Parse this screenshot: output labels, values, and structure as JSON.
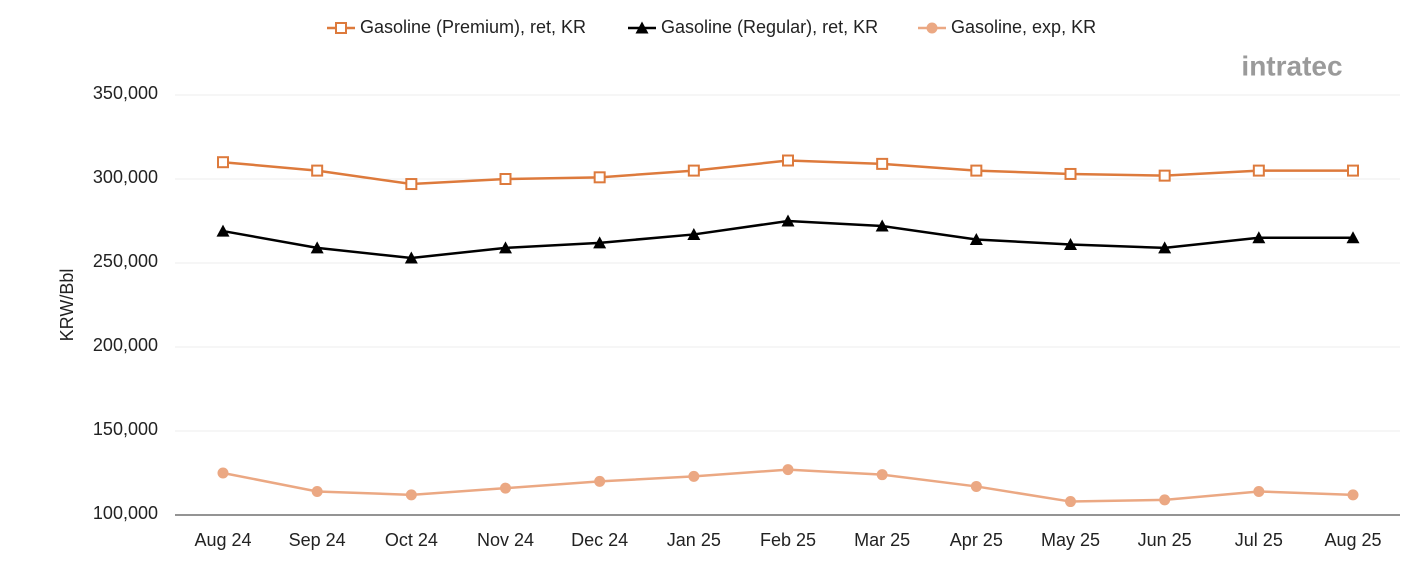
{
  "chart_data": {
    "type": "line",
    "logo": "intratec",
    "y_label": "KRW/Bbl",
    "categories": [
      "Aug 24",
      "Sep 24",
      "Oct 24",
      "Nov 24",
      "Dec 24",
      "Jan 25",
      "Feb 25",
      "Mar 25",
      "Apr 25",
      "May 25",
      "Jun 25",
      "Jul 25",
      "Aug 25"
    ],
    "series": [
      {
        "name": "Gasoline (Premium), ret, KR",
        "color": "#dd7a3c",
        "marker": "square-open",
        "values": [
          310000,
          305000,
          297000,
          300000,
          301000,
          305000,
          311000,
          309000,
          305000,
          303000,
          302000,
          305000,
          305000
        ]
      },
      {
        "name": "Gasoline (Regular), ret, KR",
        "color": "#000000",
        "marker": "triangle",
        "values": [
          269000,
          259000,
          253000,
          259000,
          262000,
          267000,
          275000,
          272000,
          264000,
          261000,
          259000,
          265000,
          265000
        ]
      },
      {
        "name": "Gasoline, exp, KR",
        "color": "#eba883",
        "marker": "circle",
        "values": [
          125000,
          114000,
          112000,
          116000,
          120000,
          123000,
          127000,
          124000,
          117000,
          108000,
          109000,
          114000,
          112000
        ]
      }
    ],
    "ylim": [
      100000,
      350000
    ],
    "yticks": [
      {
        "value": 100000,
        "label": "100,000"
      },
      {
        "value": 150000,
        "label": "150,000"
      },
      {
        "value": 200000,
        "label": "200,000"
      },
      {
        "value": 250000,
        "label": "250,000"
      },
      {
        "value": 300000,
        "label": "300,000"
      },
      {
        "value": 350000,
        "label": "350,000"
      }
    ],
    "grid": true,
    "legend": "top"
  }
}
